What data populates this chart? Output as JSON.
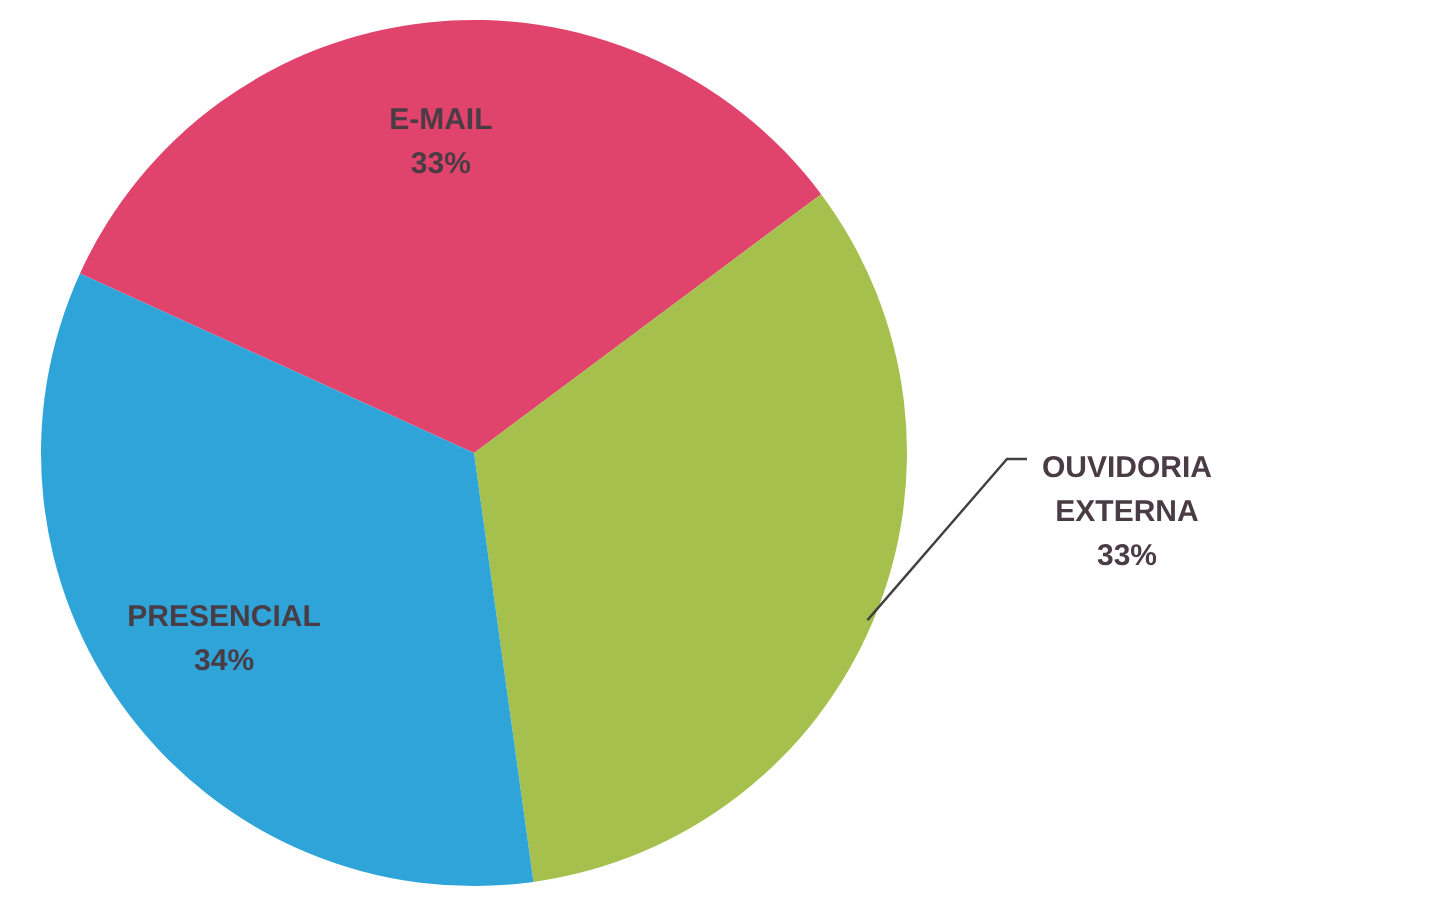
{
  "chart_data": {
    "type": "pie",
    "categories": [
      "E-MAIL",
      "OUVIDORIA EXTERNA",
      "PRESENCIAL"
    ],
    "values": [
      33,
      33,
      34
    ],
    "value_labels": [
      "33%",
      "33%",
      "34%"
    ],
    "colors": [
      "#e0436b",
      "#a5c04c",
      "#2fa4d9"
    ],
    "legend": false
  }
}
